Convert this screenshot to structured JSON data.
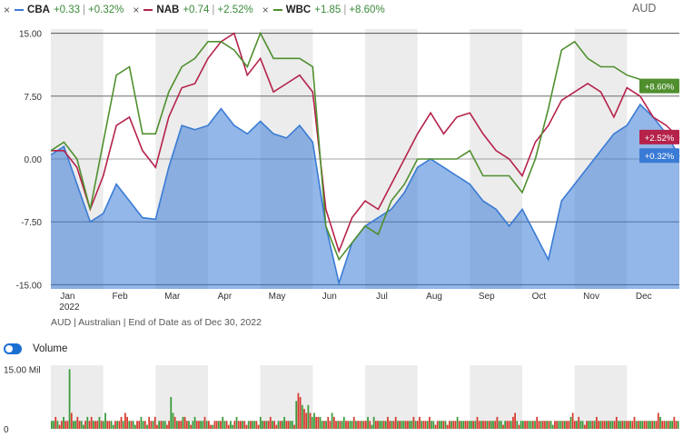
{
  "header": {
    "currency": "AUD",
    "legend": [
      {
        "close_icon": "close-icon",
        "name": "CBA",
        "change": "+0.33",
        "pct": "+0.32%",
        "color": "#3a7bd5",
        "sep": "|"
      },
      {
        "close_icon": "close-icon",
        "name": "NAB",
        "change": "+0.74",
        "pct": "+2.52%",
        "color": "#b5224a",
        "sep": "|"
      },
      {
        "close_icon": "close-icon",
        "name": "WBC",
        "change": "+1.85",
        "pct": "+8.60%",
        "color": "#4f8f2e",
        "sep": "|"
      }
    ]
  },
  "subtitle": "AUD | Australian | End of Date as of Dec 30, 2022",
  "volume_toggle": {
    "label": "Volume",
    "on": true
  },
  "chart_data": [
    {
      "type": "line",
      "ylim": [
        -15.5,
        15.5
      ],
      "yticks": [
        "15.00",
        "7.50",
        "0.00",
        "-7.50",
        "-15.00"
      ],
      "ytick_values": [
        15,
        7.5,
        0,
        -7.5,
        -15
      ],
      "xticks": [
        "Jan",
        "Feb",
        "Mar",
        "Apr",
        "May",
        "Jun",
        "Jul",
        "Aug",
        "Sep",
        "Oct",
        "Nov",
        "Dec"
      ],
      "xtick_sub": "2022",
      "x_points": [
        0,
        1,
        2,
        3,
        4,
        5,
        6,
        7,
        8,
        9,
        10,
        11,
        12,
        13,
        14,
        15,
        16,
        17,
        18,
        19,
        20,
        21,
        22,
        23,
        24,
        25,
        26,
        27,
        28,
        29,
        30,
        31,
        32,
        33,
        34,
        35,
        36,
        37,
        38,
        39,
        40,
        41,
        42,
        43,
        44,
        45,
        46,
        47,
        48
      ],
      "series": [
        {
          "name": "CBA",
          "color": "#3a7bd5",
          "filled": true,
          "end_label": "+0.32%",
          "values": [
            0.5,
            1.5,
            -3,
            -7.5,
            -6.5,
            -3,
            -5,
            -7,
            -7.2,
            -1,
            4,
            3.5,
            4,
            6,
            4,
            3,
            4.5,
            3,
            2.5,
            4,
            2,
            -8,
            -14.8,
            -10,
            -8,
            -7,
            -6,
            -4,
            -1,
            0,
            -1,
            -2,
            -3,
            -5,
            -6,
            -8,
            -6,
            -9,
            -12,
            -5,
            -3,
            -1,
            1,
            3,
            4,
            6.5,
            5,
            3,
            0.3
          ]
        },
        {
          "name": "NAB",
          "color": "#b5224a",
          "filled": false,
          "end_label": "+2.52%",
          "values": [
            1,
            1,
            -1,
            -6,
            -2,
            4,
            5,
            1,
            -1,
            5,
            8.5,
            9,
            12,
            14,
            15,
            10,
            12,
            8,
            9,
            10,
            8,
            -6,
            -11,
            -7,
            -5,
            -6,
            -3,
            0,
            3,
            5.5,
            3,
            5,
            5.5,
            3,
            1,
            0,
            -2,
            2,
            4,
            7,
            8,
            9,
            8,
            5,
            8.5,
            7.5,
            5,
            4,
            2.5
          ]
        },
        {
          "name": "WBC",
          "color": "#4f8f2e",
          "filled": false,
          "end_label": "+8.60%",
          "values": [
            1,
            2,
            0,
            -6,
            2,
            10,
            11,
            3,
            3,
            8,
            11,
            12,
            14,
            14,
            13,
            11,
            15,
            12,
            12,
            12,
            11,
            -8,
            -12,
            -10,
            -8,
            -9,
            -5,
            -3,
            0,
            0,
            0,
            0,
            1,
            -2,
            -2,
            -2,
            -4,
            0,
            6,
            13,
            14,
            12,
            11,
            11,
            10,
            9.5,
            9,
            9,
            8.6
          ]
        }
      ]
    },
    {
      "type": "bar",
      "ylim": [
        0,
        16
      ],
      "yticks": [
        "15.00 Mil",
        "0"
      ],
      "ytick_values": [
        15,
        0
      ],
      "up_color": "#3a9a3a",
      "down_color": "#d63a2e",
      "values": [
        2,
        2,
        3,
        2,
        1,
        2,
        3,
        2,
        2,
        15,
        4,
        2,
        2,
        3,
        2,
        2,
        1,
        2,
        3,
        2,
        3,
        2,
        2,
        2,
        3,
        2,
        2,
        4,
        2,
        2,
        2,
        1,
        2,
        2,
        2,
        3,
        2,
        4,
        3,
        2,
        2,
        2,
        1,
        2,
        2,
        3,
        2,
        2,
        1,
        3,
        2,
        2,
        3,
        1,
        2,
        2,
        2,
        2,
        1,
        2,
        8,
        4,
        3,
        2,
        2,
        2,
        3,
        3,
        2,
        2,
        1,
        2,
        3,
        2,
        2,
        2,
        2,
        3,
        2,
        2,
        1,
        1,
        2,
        2,
        2,
        2,
        3,
        2,
        2,
        1,
        2,
        1,
        2,
        3,
        2,
        2,
        2,
        2,
        1,
        2,
        2,
        2,
        2,
        2,
        1,
        3,
        2,
        2,
        2,
        2,
        3,
        2,
        2,
        1,
        2,
        2,
        2,
        3,
        2,
        2,
        2,
        2,
        1,
        7,
        9,
        8,
        6,
        5,
        4,
        6,
        4,
        3,
        4,
        3,
        3,
        3,
        2,
        2,
        2,
        3,
        2,
        4,
        3,
        2,
        2,
        2,
        2,
        3,
        2,
        2,
        2,
        2,
        3,
        2,
        2,
        2,
        2,
        2,
        2,
        3,
        2,
        1,
        3,
        2,
        2,
        2,
        2,
        2,
        2,
        3,
        2,
        2,
        2,
        3,
        2,
        2,
        2,
        2,
        2,
        2,
        2,
        2,
        3,
        2,
        2,
        3,
        2,
        2,
        2,
        2,
        3,
        2,
        2,
        1,
        2,
        2,
        2,
        2,
        2,
        1,
        2,
        2,
        2,
        2,
        3,
        2,
        2,
        2,
        2,
        2,
        2,
        2,
        2,
        2,
        3,
        2,
        2,
        2,
        2,
        2,
        2,
        2,
        2,
        2,
        3,
        2,
        2,
        1,
        2,
        2,
        2,
        2,
        3,
        4,
        2,
        1,
        2,
        2,
        2,
        2,
        2,
        2,
        2,
        2,
        3,
        2,
        2,
        2,
        2,
        2,
        2,
        2,
        1,
        2,
        2,
        2,
        2,
        2,
        2,
        2,
        2,
        3,
        4,
        2,
        2,
        3,
        2,
        2,
        1,
        2,
        2,
        2,
        2,
        2,
        3,
        2,
        2,
        2,
        2,
        2,
        2,
        2,
        2,
        2,
        3,
        2,
        2,
        2,
        2,
        2,
        2,
        2,
        2,
        3,
        2,
        2,
        2,
        2,
        2,
        2,
        2,
        2,
        2,
        2,
        2,
        4,
        3,
        2,
        2,
        2,
        2,
        2,
        2,
        3,
        2,
        2
      ]
    }
  ]
}
